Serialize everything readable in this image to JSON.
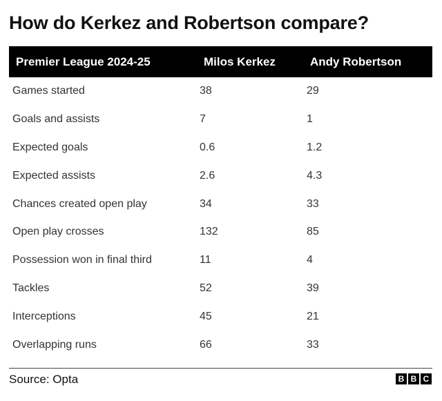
{
  "title": "How do Kerkez and Robertson compare?",
  "source": "Source: Opta",
  "logo_letters": [
    "B",
    "B",
    "C"
  ],
  "chart_data": {
    "type": "table",
    "columns": [
      "Premier League 2024-25",
      "Milos Kerkez",
      "Andy Robertson"
    ],
    "rows": [
      [
        "Games started",
        "38",
        "29"
      ],
      [
        "Goals and assists",
        "7",
        "1"
      ],
      [
        "Expected goals",
        "0.6",
        "1.2"
      ],
      [
        "Expected assists",
        "2.6",
        "4.3"
      ],
      [
        "Chances created open play",
        "34",
        "33"
      ],
      [
        "Open play crosses",
        "132",
        "85"
      ],
      [
        "Possession won in final third",
        "11",
        "4"
      ],
      [
        "Tackles",
        "52",
        "39"
      ],
      [
        "Interceptions",
        "45",
        "21"
      ],
      [
        "Overlapping runs",
        "66",
        "33"
      ]
    ]
  }
}
